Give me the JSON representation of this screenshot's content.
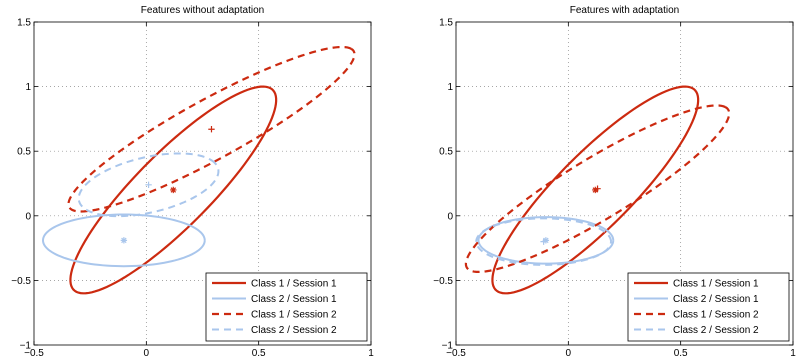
{
  "chart_data": [
    {
      "type": "line",
      "title": "Features without adaptation",
      "xlabel": "",
      "ylabel": "",
      "xlim": [
        -0.5,
        1.0
      ],
      "ylim": [
        -1.0,
        1.5
      ],
      "xticks": [
        -0.5,
        0,
        0.5,
        1
      ],
      "xtick_labels": [
        "−0.5",
        "0",
        "0.5",
        "1"
      ],
      "yticks": [
        -1,
        -0.5,
        0,
        0.5,
        1,
        1.5
      ],
      "ytick_labels": [
        "−1",
        "−0.5",
        "0",
        "0.5",
        "1",
        "1.5"
      ],
      "grid": "dotted",
      "legend_position": "bottom-right",
      "series": [
        {
          "name": "Class 1 / Session 1",
          "color": "#cc2a10",
          "dash": "solid",
          "center": [
            0.12,
            0.2
          ],
          "rx": 0.9,
          "ry": 0.2,
          "angle_deg": 62,
          "marker": "*"
        },
        {
          "name": "Class 2 / Session 1",
          "color": "#a9c6ec",
          "dash": "solid",
          "center": [
            -0.1,
            -0.19
          ],
          "rx": 0.36,
          "ry": 0.2,
          "angle_deg": 0,
          "marker": "*"
        },
        {
          "name": "Class 1 / Session 2",
          "color": "#cc2a10",
          "dash": "dashed",
          "center": [
            0.29,
            0.67
          ],
          "rx": 0.88,
          "ry": 0.19,
          "angle_deg": 45,
          "marker": "+"
        },
        {
          "name": "Class 2 / Session 2",
          "color": "#a9c6ec",
          "dash": "dashed",
          "center": [
            0.01,
            0.24
          ],
          "rx": 0.34,
          "ry": 0.2,
          "angle_deg": 30,
          "marker": "+"
        }
      ]
    },
    {
      "type": "line",
      "title": "Features with adaptation",
      "xlabel": "",
      "ylabel": "",
      "xlim": [
        -0.5,
        1.0
      ],
      "ylim": [
        -1.0,
        1.5
      ],
      "xticks": [
        -0.5,
        0,
        0.5,
        1
      ],
      "xtick_labels": [
        "−0.5",
        "0",
        "0.5",
        "1"
      ],
      "yticks": [
        -1,
        -0.5,
        0,
        0.5,
        1,
        1.5
      ],
      "ytick_labels": [
        "−1",
        "−0.5",
        "0",
        "0.5",
        "1",
        "1.5"
      ],
      "grid": "dotted",
      "legend_position": "bottom-right",
      "series": [
        {
          "name": "Class 1 / Session 1",
          "color": "#cc2a10",
          "dash": "solid",
          "center": [
            0.12,
            0.2
          ],
          "rx": 0.9,
          "ry": 0.2,
          "angle_deg": 62,
          "marker": "*"
        },
        {
          "name": "Class 2 / Session 1",
          "color": "#a9c6ec",
          "dash": "solid",
          "center": [
            -0.1,
            -0.19
          ],
          "rx": 0.3,
          "ry": 0.18,
          "angle_deg": 0,
          "marker": "*"
        },
        {
          "name": "Class 1 / Session 2",
          "color": "#cc2a10",
          "dash": "dashed",
          "center": [
            0.13,
            0.21
          ],
          "rx": 0.85,
          "ry": 0.19,
          "angle_deg": 48,
          "marker": "+"
        },
        {
          "name": "Class 2 / Session 2",
          "color": "#a9c6ec",
          "dash": "dashed",
          "center": [
            -0.11,
            -0.2
          ],
          "rx": 0.3,
          "ry": 0.18,
          "angle_deg": 0,
          "marker": "+"
        }
      ]
    }
  ]
}
